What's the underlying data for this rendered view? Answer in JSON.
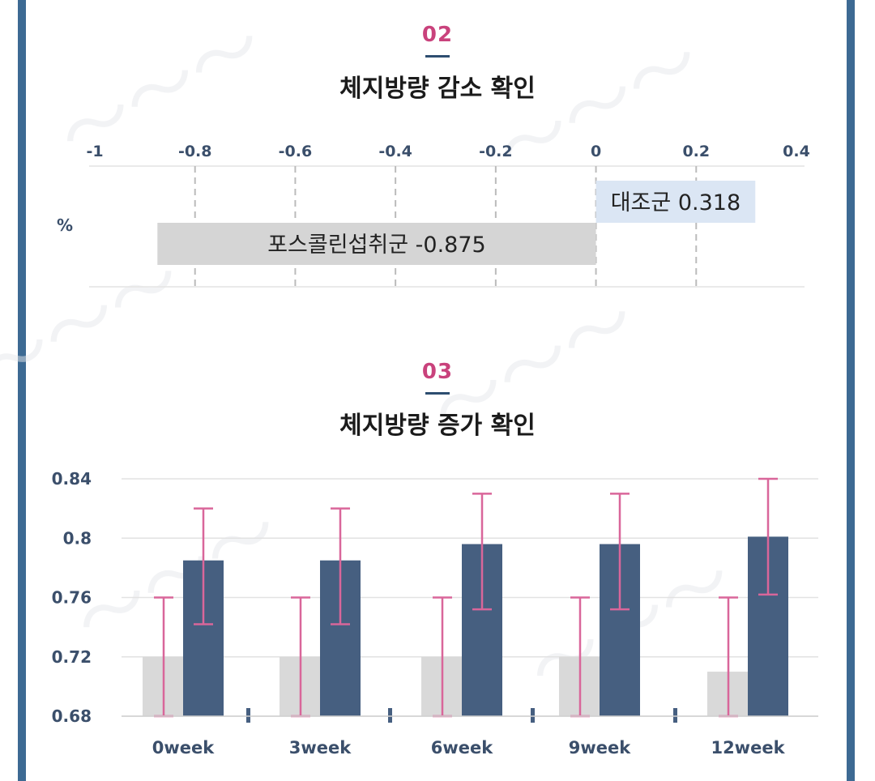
{
  "sections": [
    {
      "number": "02",
      "title": "체지방량 감소 확인"
    },
    {
      "number": "03",
      "title": "체지방량 증가 확인"
    }
  ],
  "chart_data": [
    {
      "type": "bar",
      "orientation": "horizontal",
      "title": "체지방량 감소 확인",
      "ylabel": "%",
      "xlim": [
        -1,
        0.4
      ],
      "xticks": [
        "-1",
        "-0.8",
        "-0.6",
        "-0.4",
        "-0.2",
        "0",
        "0.2",
        "0.4"
      ],
      "bars": [
        {
          "name": "대조군",
          "value": 0.318,
          "label": "대조군 0.318",
          "color": "#dbe6f4"
        },
        {
          "name": "포스콜린섭취군",
          "value": -0.875,
          "label": "포스콜린섭취군 -0.875",
          "color": "#d5d5d5"
        }
      ]
    },
    {
      "type": "bar",
      "title": "체지방량 증가 확인",
      "ylim": [
        0.68,
        0.84
      ],
      "yticks": [
        "0.84",
        "0.8",
        "0.76",
        "0.72",
        "0.68"
      ],
      "categories": [
        "0week",
        "3week",
        "6week",
        "9week",
        "12week"
      ],
      "series": [
        {
          "values": [
            0.72,
            0.72,
            0.72,
            0.72,
            0.71
          ],
          "error_low": [
            0.68,
            0.68,
            0.68,
            0.68,
            0.68
          ],
          "error_high": [
            0.76,
            0.76,
            0.76,
            0.76,
            0.76
          ],
          "color": "#d9d9d9"
        },
        {
          "values": [
            0.785,
            0.785,
            0.796,
            0.796,
            0.801
          ],
          "error_low": [
            0.742,
            0.742,
            0.752,
            0.752,
            0.762
          ],
          "error_high": [
            0.82,
            0.82,
            0.83,
            0.83,
            0.84
          ],
          "color": "#465f80"
        }
      ],
      "error_bar_color": "#d9669a"
    }
  ]
}
